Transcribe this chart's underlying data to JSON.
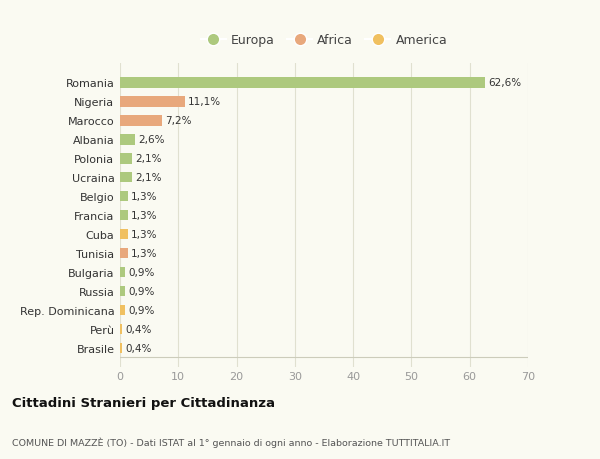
{
  "categories": [
    "Romania",
    "Nigeria",
    "Marocco",
    "Albania",
    "Polonia",
    "Ucraina",
    "Belgio",
    "Francia",
    "Cuba",
    "Tunisia",
    "Bulgaria",
    "Russia",
    "Rep. Dominicana",
    "Perù",
    "Brasile"
  ],
  "values": [
    62.6,
    11.1,
    7.2,
    2.6,
    2.1,
    2.1,
    1.3,
    1.3,
    1.3,
    1.3,
    0.9,
    0.9,
    0.9,
    0.4,
    0.4
  ],
  "labels": [
    "62,6%",
    "11,1%",
    "7,2%",
    "2,6%",
    "2,1%",
    "2,1%",
    "1,3%",
    "1,3%",
    "1,3%",
    "1,3%",
    "0,9%",
    "0,9%",
    "0,9%",
    "0,4%",
    "0,4%"
  ],
  "colors": [
    "#adc97e",
    "#e8a87c",
    "#e8a87c",
    "#adc97e",
    "#adc97e",
    "#adc97e",
    "#adc97e",
    "#adc97e",
    "#f0c060",
    "#e8a87c",
    "#adc97e",
    "#adc97e",
    "#f0c060",
    "#f0c060",
    "#f0c060"
  ],
  "legend": [
    {
      "label": "Europa",
      "color": "#adc97e"
    },
    {
      "label": "Africa",
      "color": "#e8a87c"
    },
    {
      "label": "America",
      "color": "#f0c060"
    }
  ],
  "xlim": [
    0,
    70
  ],
  "xticks": [
    0,
    10,
    20,
    30,
    40,
    50,
    60,
    70
  ],
  "title": "Cittadini Stranieri per Cittadinanza",
  "subtitle": "COMUNE DI MAZZÈ (TO) - Dati ISTAT al 1° gennaio di ogni anno - Elaborazione TUTTITALIA.IT",
  "background_color": "#fafaf2",
  "grid_color": "#e0e0d0"
}
